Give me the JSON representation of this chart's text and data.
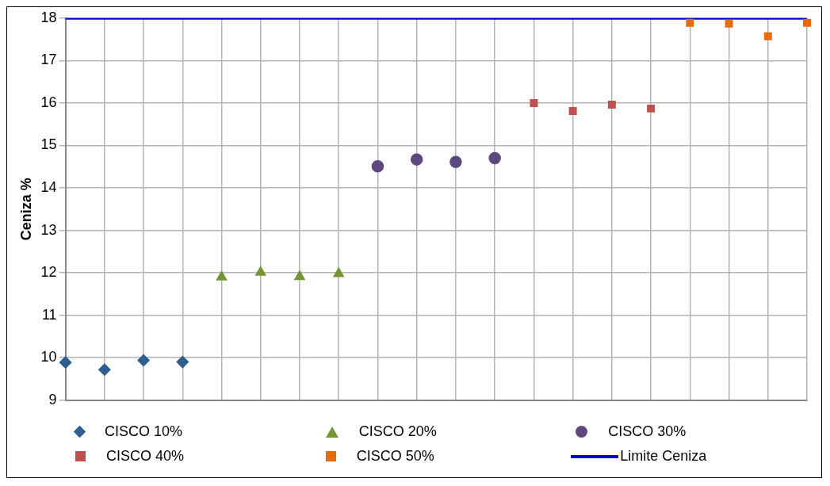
{
  "chart_data": {
    "type": "scatter",
    "ylabel": "Ceniza %",
    "categories": [
      null,
      null,
      null,
      null,
      null,
      null,
      null,
      null,
      null,
      null,
      null,
      null,
      null,
      null,
      null,
      null,
      null,
      null,
      null,
      null
    ],
    "series": [
      {
        "name": "CISCO 10%",
        "color": "#2e5f8f",
        "marker": "diamond",
        "values": [
          9.89,
          9.72,
          9.94,
          9.9,
          null,
          null,
          null,
          null,
          null,
          null,
          null,
          null,
          null,
          null,
          null,
          null,
          null,
          null,
          null,
          null
        ]
      },
      {
        "name": "CISCO 20%",
        "color": "#769535",
        "marker": "triangle",
        "values": [
          null,
          null,
          null,
          null,
          11.9,
          12.01,
          11.91,
          11.98,
          null,
          null,
          null,
          null,
          null,
          null,
          null,
          null,
          null,
          null,
          null,
          null
        ]
      },
      {
        "name": "CISCO 30%",
        "color": "#5f4880",
        "marker": "circle",
        "values": [
          null,
          null,
          null,
          null,
          null,
          null,
          null,
          null,
          14.51,
          14.67,
          14.61,
          14.7,
          null,
          null,
          null,
          null,
          null,
          null,
          null,
          null
        ]
      },
      {
        "name": "CISCO 40%",
        "color": "#c0504d",
        "marker": "square",
        "values": [
          null,
          null,
          null,
          null,
          null,
          null,
          null,
          null,
          null,
          null,
          null,
          null,
          16.0,
          15.81,
          15.96,
          15.87,
          null,
          null,
          null,
          null
        ]
      },
      {
        "name": "CISCO 50%",
        "color": "#e46c0a",
        "marker": "square",
        "values": [
          null,
          null,
          null,
          null,
          null,
          null,
          null,
          null,
          null,
          null,
          null,
          null,
          null,
          null,
          null,
          null,
          17.89,
          17.87,
          17.57,
          17.89
        ]
      },
      {
        "name": "Limite Ceniza",
        "type": "line",
        "color": "#0000dd",
        "marker": "none",
        "values": [
          18,
          18,
          18,
          18,
          18,
          18,
          18,
          18,
          18,
          18,
          18,
          18,
          18,
          18,
          18,
          18,
          18,
          18,
          18,
          18
        ]
      }
    ],
    "ylim": [
      9,
      18
    ],
    "yticks": [
      9,
      10,
      11,
      12,
      13,
      14,
      15,
      16,
      17,
      18
    ],
    "grid": true,
    "legend": "bottom"
  }
}
